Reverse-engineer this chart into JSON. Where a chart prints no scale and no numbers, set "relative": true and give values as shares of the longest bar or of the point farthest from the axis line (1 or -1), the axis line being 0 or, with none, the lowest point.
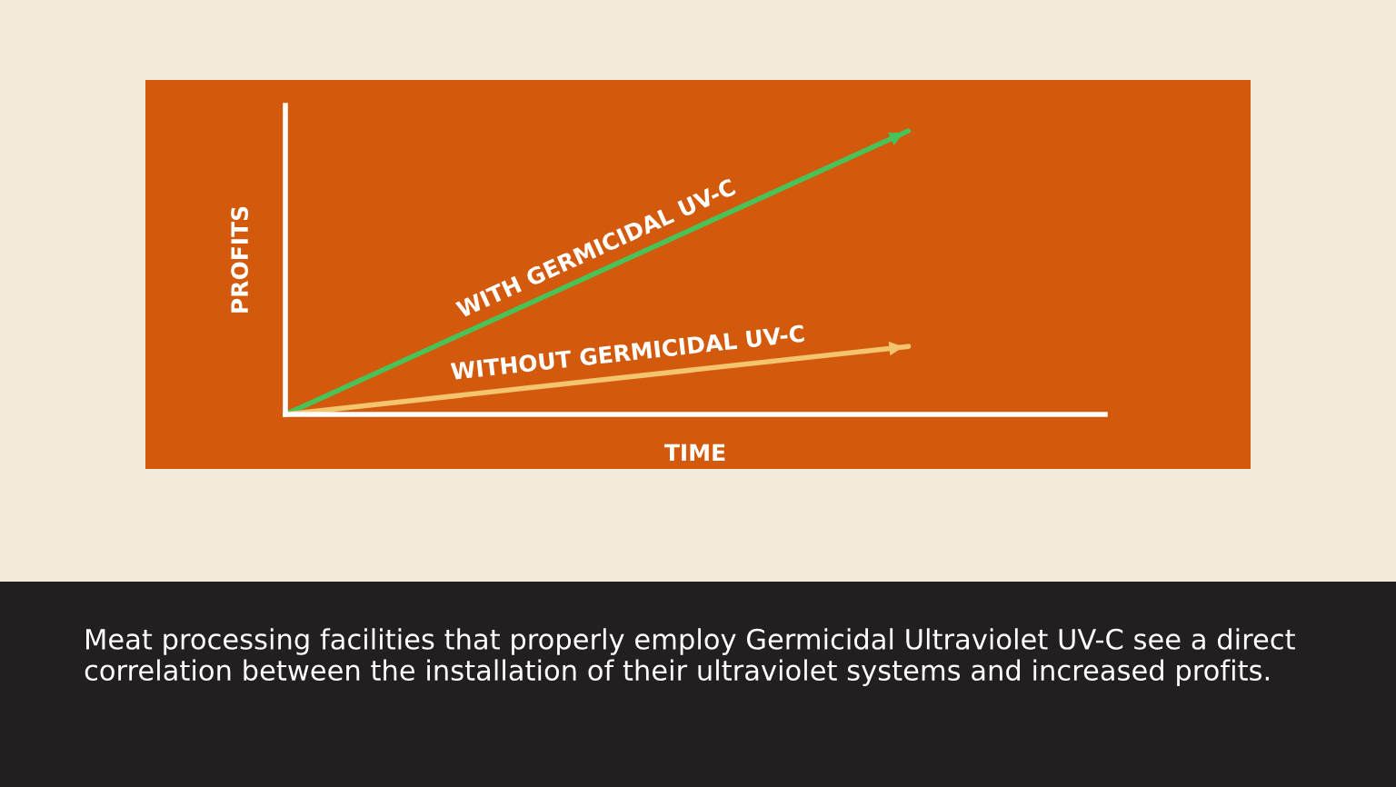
{
  "chart_data": {
    "type": "line",
    "relative": true,
    "xlabel": "TIME",
    "ylabel": "PROFITS",
    "categories": [
      null,
      null
    ],
    "series": [
      {
        "name": "WITH GERMICIDAL UV-C",
        "color": "#47c35a",
        "values": [
          0,
          1
        ]
      },
      {
        "name": "WITHOUT GERMICIDAL UV-C",
        "color": "#f4c46e",
        "values": [
          0,
          0.24
        ]
      }
    ],
    "grid": false,
    "legend": false,
    "line_style": "solid",
    "annotations": [
      "Meat processing facilities that properly employ Germicidal Ultraviolet UV-C see a direct correlation between the installation of their ultraviolet systems and increased profits."
    ]
  }
}
